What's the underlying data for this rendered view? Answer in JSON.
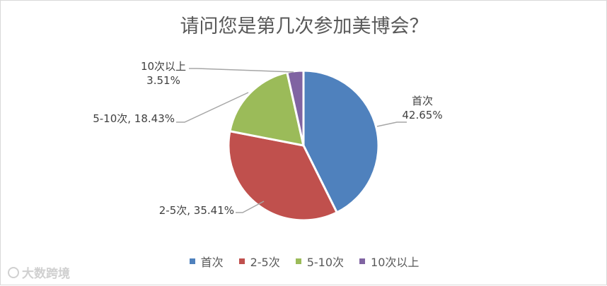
{
  "chart_data": {
    "type": "pie",
    "title": "请问您是第几次参加美博会？",
    "slices": [
      {
        "name": "首次",
        "value": 42.65,
        "label": "42.65%",
        "color": "#4f81bd"
      },
      {
        "name": "2-5次",
        "value": 35.41,
        "label": "35.41%",
        "color": "#c0504d"
      },
      {
        "name": "5-10次",
        "value": 18.43,
        "label": "18.43%",
        "color": "#9bbb59"
      },
      {
        "name": "10次以上",
        "value": 3.51,
        "label": "3.51%",
        "color": "#8064a2"
      }
    ],
    "legend_position": "bottom"
  },
  "watermark": {
    "text": "大数跨境"
  }
}
